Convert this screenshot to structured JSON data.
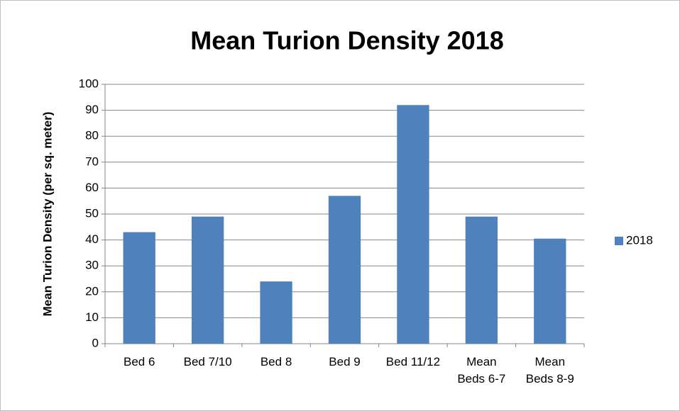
{
  "chart_data": {
    "type": "bar",
    "title": "Mean Turion Density 2018",
    "y_label": "Mean Turion Density (per sq. meter)",
    "categories": [
      "Bed 6",
      "Bed 7/10",
      "Bed 8",
      "Bed 9",
      "Bed 11/12",
      "Mean Beds 6-7",
      "Mean Beds 8-9"
    ],
    "series": [
      {
        "name": "2018",
        "color": "#4f81bd",
        "values": [
          43,
          49,
          24,
          57,
          92,
          49,
          40.5
        ]
      }
    ],
    "ylim": [
      0,
      100
    ],
    "yticks": [
      0,
      10,
      20,
      30,
      40,
      50,
      60,
      70,
      80,
      90,
      100
    ],
    "grid": true,
    "legend": "right"
  }
}
